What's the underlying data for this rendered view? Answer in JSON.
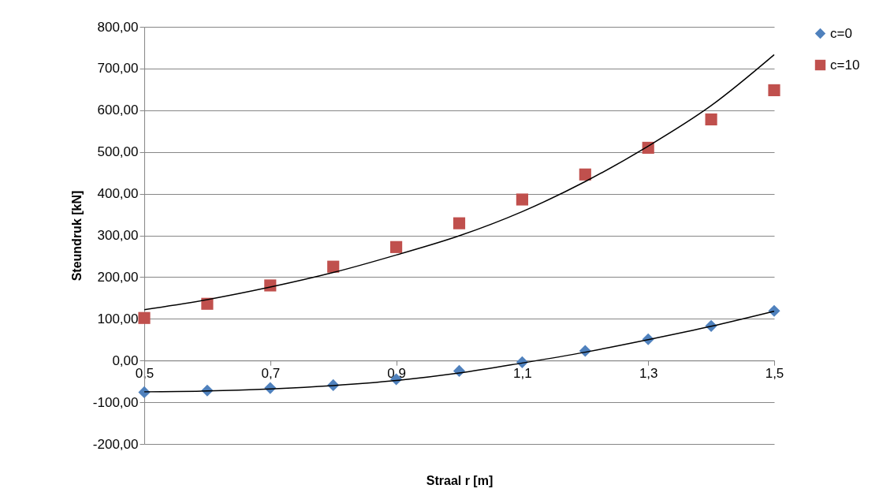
{
  "chart_data": {
    "type": "scatter",
    "xlabel": "Straal r [m]",
    "ylabel": "Steundruk [kN]",
    "x": [
      0.5,
      0.6,
      0.7,
      0.8,
      0.9,
      1.0,
      1.1,
      1.2,
      1.3,
      1.4,
      1.5
    ],
    "series": [
      {
        "name": "c=0",
        "color": "#4f81bd",
        "marker": "diamond",
        "values": [
          -76,
          -72,
          -66,
          -59,
          -45,
          -25,
          -4,
          23,
          51,
          83,
          119
        ]
      },
      {
        "name": "c=10",
        "color": "#c0504d",
        "marker": "square",
        "values": [
          102,
          136,
          180,
          225,
          272,
          329,
          386,
          446,
          510,
          578,
          648
        ]
      },
      {
        "type": "line",
        "color": "#000000",
        "marker": "none",
        "values": [
          -75,
          -73,
          -68,
          -60,
          -48,
          -30,
          -6,
          20,
          50,
          82,
          118
        ]
      },
      {
        "type": "line",
        "color": "#000000",
        "marker": "none",
        "values": [
          122,
          146,
          176,
          211,
          253,
          299,
          357,
          429,
          514,
          611,
          733
        ]
      }
    ],
    "xlim": [
      0.5,
      1.5
    ],
    "xticks": [
      {
        "value": 0.5,
        "label": "0,5"
      },
      {
        "value": 0.7,
        "label": "0,7"
      },
      {
        "value": 0.9,
        "label": "0,9"
      },
      {
        "value": 1.1,
        "label": "1,1"
      },
      {
        "value": 1.3,
        "label": "1,3"
      },
      {
        "value": 1.5,
        "label": "1,5"
      }
    ],
    "ylim": [
      -200,
      800
    ],
    "yticks": [
      {
        "value": -200,
        "label": "-200,00"
      },
      {
        "value": -100,
        "label": "-100,00"
      },
      {
        "value": 0,
        "label": "0,00"
      },
      {
        "value": 100,
        "label": "100,00"
      },
      {
        "value": 200,
        "label": "200,00"
      },
      {
        "value": 300,
        "label": "300,00"
      },
      {
        "value": 400,
        "label": "400,00"
      },
      {
        "value": 500,
        "label": "500,00"
      },
      {
        "value": 600,
        "label": "600,00"
      },
      {
        "value": 700,
        "label": "700,00"
      },
      {
        "value": 800,
        "label": "800,00"
      }
    ],
    "grid": "y",
    "legend": "right"
  }
}
